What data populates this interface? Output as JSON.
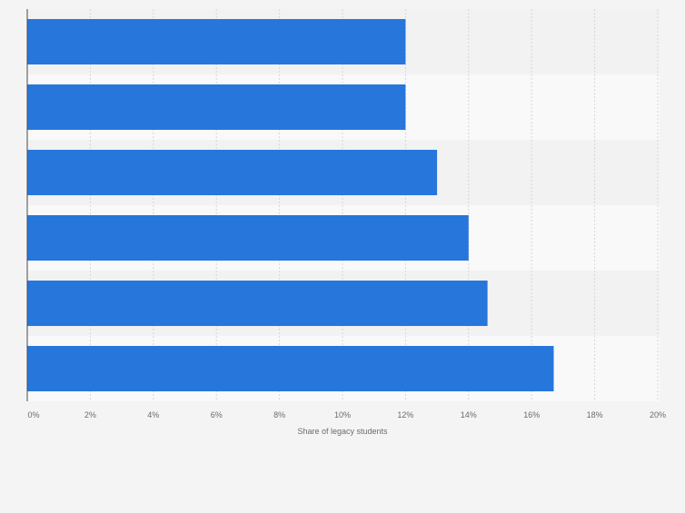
{
  "chart_data": {
    "type": "bar",
    "orientation": "horizontal",
    "categories": [
      "",
      "",
      "",
      "",
      "",
      ""
    ],
    "values": [
      12,
      12,
      13,
      14,
      14.6,
      16.7
    ],
    "xlabel": "Share of legacy students",
    "ylabel": "",
    "xlim": [
      0,
      20
    ],
    "x_ticks": [
      "0%",
      "2%",
      "4%",
      "6%",
      "8%",
      "10%",
      "12%",
      "14%",
      "16%",
      "18%",
      "20%"
    ],
    "grid": true,
    "legend": "none",
    "colors": {
      "bar": "#2676dc",
      "band_dark": "#f2f2f3",
      "band_light": "#f9f9fa",
      "background": "#f4f4f5",
      "grid": "#d6d6d9",
      "axis": "#4a4a4a",
      "tick_text": "#6b6b6b"
    }
  }
}
